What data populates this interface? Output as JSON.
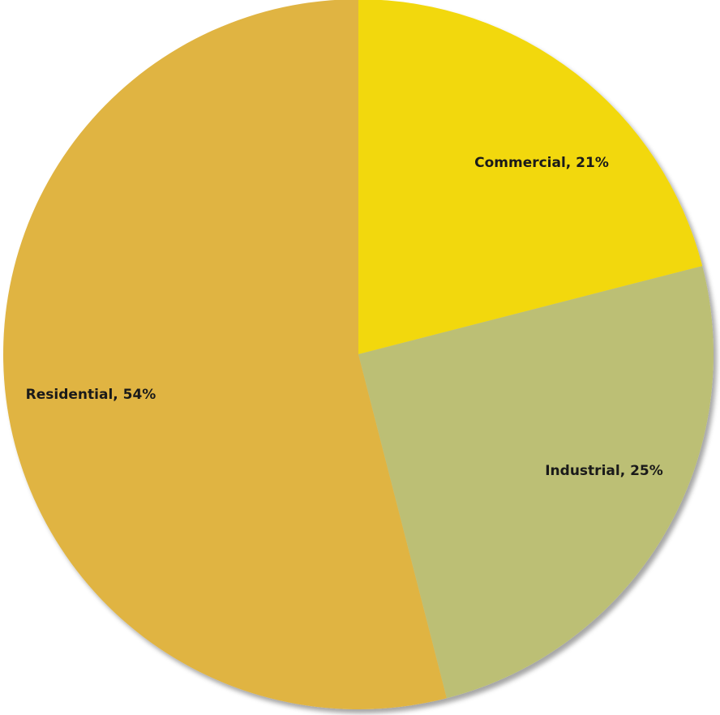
{
  "chart_data": {
    "type": "pie",
    "title": "",
    "start_angle_deg": 0,
    "direction": "clockwise",
    "slices": [
      {
        "name": "Commercial",
        "value": 21,
        "label": "Commercial, 21%",
        "color": "#F2D811"
      },
      {
        "name": "Industrial",
        "value": 25,
        "label": "Industrial, 25%",
        "color": "#BCBF74"
      },
      {
        "name": "Residential",
        "value": 54,
        "label": "Residential, 54%",
        "color": "#E0B443"
      }
    ],
    "legend": "none",
    "shadow": true
  }
}
